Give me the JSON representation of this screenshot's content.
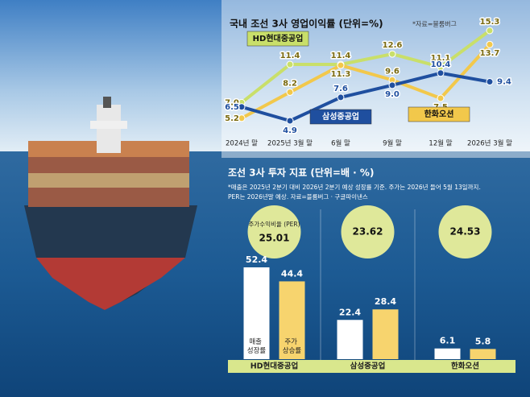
{
  "chart_data": [
    {
      "type": "line",
      "title": "국내 조선 3사 영업이익률 (단위=%)",
      "source": "*자료=블룸버그",
      "categories": [
        "2024년 말",
        "2025년 3월 말",
        "6월 말",
        "9월 말",
        "12월 말",
        "2026년 3월 말"
      ],
      "series": [
        {
          "name": "HD현대중공업",
          "color": "#c9df6a",
          "values": [
            7.0,
            11.4,
            11.4,
            12.6,
            11.1,
            15.3
          ],
          "value_labels": [
            "7.0",
            "11.4",
            "11.4",
            "12.6",
            "11.1",
            "15.3"
          ]
        },
        {
          "name": "한화오션",
          "color": "#f2c84b",
          "values": [
            5.2,
            8.2,
            11.3,
            9.6,
            7.5,
            13.7
          ],
          "value_labels": [
            "5.2",
            "8.2",
            "11.3",
            "9.6",
            "7.5",
            "13.7"
          ]
        },
        {
          "name": "삼성중공업",
          "color": "#1f4f9f",
          "values": [
            6.5,
            4.9,
            7.6,
            9.0,
            10.4,
            9.4
          ],
          "value_labels": [
            "6.5",
            "4.9",
            "7.6",
            "9.0",
            "10.4",
            "9.4"
          ]
        }
      ]
    },
    {
      "type": "bar",
      "title": "조선 3사 투자 지표 (단위=배 · %)",
      "notes": [
        "*매출은 2025년 2분기 대비 2026년 2분기 예상 성장률 기준. 주가는 2026년 들어 5월 13일까지.",
        "PER는 2026년말 예상. 자료=블룸버그 · 구글파이낸스"
      ],
      "categories": [
        "HD현대중공업",
        "삼성중공업",
        "한화오션"
      ],
      "per": {
        "name": "주가수익비율 (PER)",
        "color": "#dfe89a",
        "values": [
          25.01,
          23.62,
          24.53
        ]
      },
      "series": [
        {
          "name": "매출 성장률",
          "color": "#ffffff",
          "values": [
            52.4,
            22.4,
            6.1
          ]
        },
        {
          "name": "주가 상승률",
          "color": "#f7d46e",
          "values": [
            44.4,
            28.4,
            5.8
          ]
        }
      ]
    }
  ]
}
